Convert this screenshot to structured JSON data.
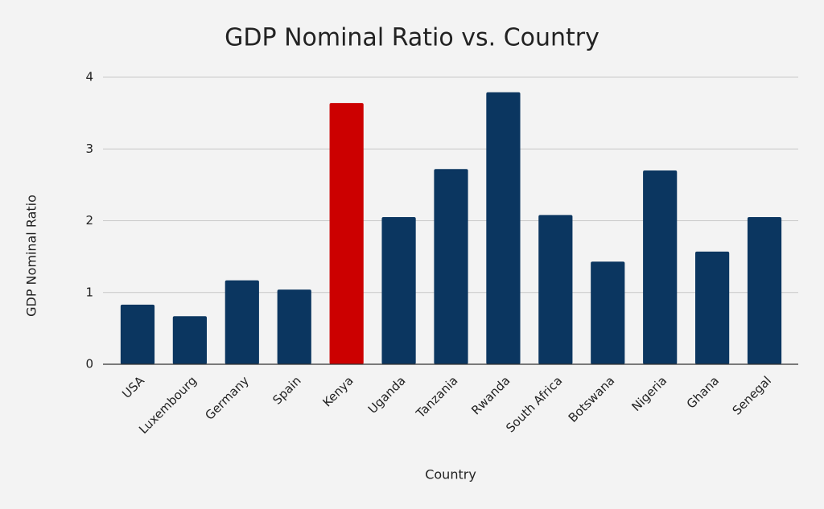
{
  "chart_data": {
    "type": "bar",
    "title": "GDP Nominal Ratio vs. Country",
    "x_label": "Country",
    "y_label": "GDP Nominal Ratio",
    "categories": [
      "USA",
      "Luxembourg",
      "Germany",
      "Spain",
      "Kenya",
      "Uganda",
      "Tanzania",
      "Rwanda",
      "South Africa",
      "Botswana",
      "Nigeria",
      "Ghana",
      "Senegal"
    ],
    "values": [
      0.83,
      0.67,
      1.17,
      1.04,
      3.64,
      2.05,
      2.72,
      3.79,
      2.08,
      1.43,
      2.7,
      1.57,
      2.05
    ],
    "colors": [
      "#0b3660",
      "#0b3660",
      "#0b3660",
      "#0b3660",
      "#cc0000",
      "#0b3660",
      "#0b3660",
      "#0b3660",
      "#0b3660",
      "#0b3660",
      "#0b3660",
      "#0b3660",
      "#0b3660"
    ],
    "ylim": [
      0,
      4
    ],
    "yticks": [
      0,
      1,
      2,
      3,
      4
    ],
    "grid": true
  }
}
